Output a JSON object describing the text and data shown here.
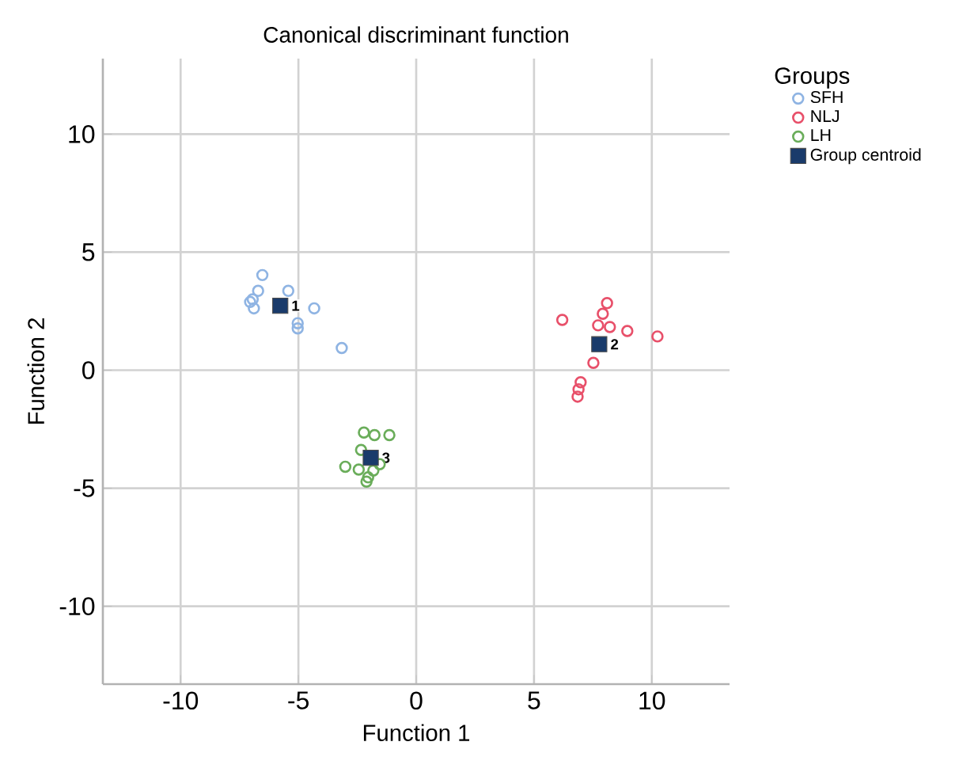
{
  "chart_data": {
    "type": "scatter",
    "title": "Canonical discriminant function",
    "xlabel": "Function 1",
    "ylabel": "Function 2",
    "legend_title": "Groups",
    "xlim": [
      -13.3,
      13.3
    ],
    "ylim": [
      -13.3,
      13.2
    ],
    "xticks": [
      -10,
      -5,
      0,
      5,
      10
    ],
    "yticks": [
      -10,
      -5,
      0,
      5,
      10
    ],
    "grid": true,
    "legend": "right",
    "series": [
      {
        "name": "SFH",
        "color": "#8fb4e3",
        "marker": "circle",
        "x": [
          -6.53,
          -6.71,
          -6.94,
          -7.05,
          -6.89,
          -5.43,
          -4.33,
          -5.03,
          -5.03,
          -3.16
        ],
        "values": [
          4.03,
          3.36,
          3.0,
          2.89,
          2.62,
          3.36,
          2.62,
          1.99,
          1.77,
          0.94
        ]
      },
      {
        "name": "NLJ",
        "color": "#e8506a",
        "marker": "circle",
        "x": [
          8.1,
          6.2,
          7.92,
          7.72,
          8.22,
          8.96,
          10.24,
          7.52,
          6.98,
          6.89,
          6.85
        ],
        "values": [
          2.84,
          2.13,
          2.39,
          1.9,
          1.83,
          1.66,
          1.43,
          0.31,
          -0.51,
          -0.81,
          -1.12
        ]
      },
      {
        "name": "LH",
        "color": "#6aad5a",
        "marker": "circle",
        "x": [
          -2.22,
          -1.77,
          -1.14,
          -2.34,
          null,
          -3.01,
          -2.44,
          -1.82,
          -2.04,
          -2.11,
          -1.55
        ],
        "values": [
          -2.64,
          -2.75,
          -2.75,
          -3.38,
          null,
          -4.09,
          -4.21,
          -4.25,
          -4.54,
          -4.72,
          -3.98
        ]
      },
      {
        "name": "Group centroid",
        "color": "#1a3b6b",
        "marker": "square",
        "x": [
          -5.77,
          7.77,
          -1.93
        ],
        "values": [
          2.73,
          1.1,
          -3.71
        ]
      }
    ],
    "annotations": [
      {
        "text": "1",
        "x": -5.77,
        "y": 2.73
      },
      {
        "text": "2",
        "x": 7.77,
        "y": 1.1
      },
      {
        "text": "3",
        "x": -1.93,
        "y": -3.71
      }
    ]
  }
}
